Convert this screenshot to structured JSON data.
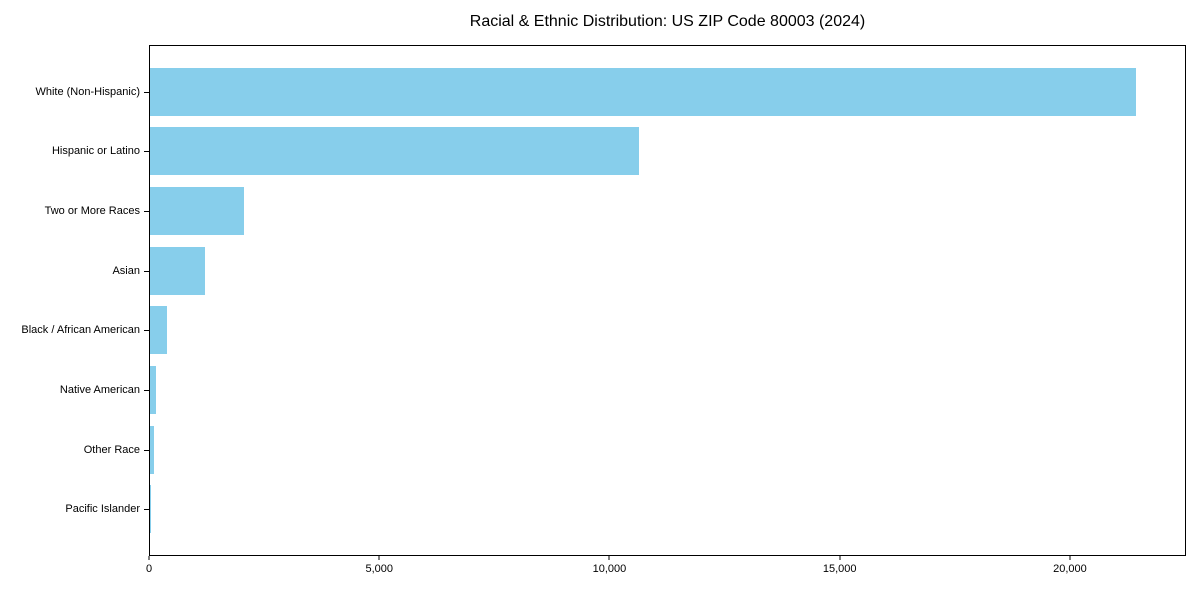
{
  "chart_data": {
    "type": "bar",
    "orientation": "horizontal",
    "title": "Racial & Ethnic Distribution: US ZIP Code 80003 (2024)",
    "categories": [
      "White (Non-Hispanic)",
      "Hispanic or Latino",
      "Two or More Races",
      "Asian",
      "Black / African American",
      "Native American",
      "Other Race",
      "Pacific Islander"
    ],
    "values": [
      21450,
      10640,
      2040,
      1190,
      370,
      130,
      87,
      15
    ],
    "xlabel": "",
    "ylabel": "",
    "xlim": [
      0,
      22520
    ],
    "xticks": [
      0,
      5000,
      10000,
      15000,
      20000
    ],
    "xtick_labels": [
      "0",
      "5,000",
      "10,000",
      "15,000",
      "20,000"
    ],
    "bar_color": "#87CEEB",
    "frame_color": "#000000",
    "background": "#FFFFFF",
    "grid": false,
    "legend": "none"
  }
}
